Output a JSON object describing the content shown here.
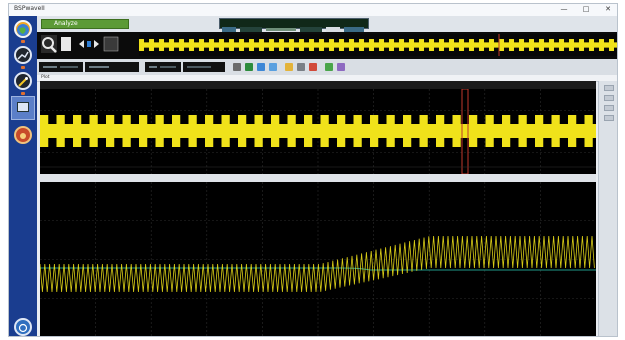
{
  "window": {
    "title": "BSPwaveII",
    "minimize": "—",
    "maximize": "□",
    "close": "✕"
  },
  "toolbar": {
    "active_tab": "Analyze"
  },
  "panels": {
    "header_label": "Plot"
  },
  "colors": {
    "sidebar": "#1a3d8f",
    "waveform": "#f0e21a",
    "reference": "#1f9a8a",
    "cursor": "#c0392b",
    "tab": "#5c9a36"
  },
  "sidebar_icons": [
    "globe-icon",
    "chart-icon",
    "wand-icon",
    "monitor-icon",
    "target-icon",
    "power-icon"
  ],
  "overview": {
    "icon": "zoom-icon",
    "nav_icons": [
      "arrow-left-icon",
      "dot-icon",
      "arrow-right-icon"
    ]
  }
}
